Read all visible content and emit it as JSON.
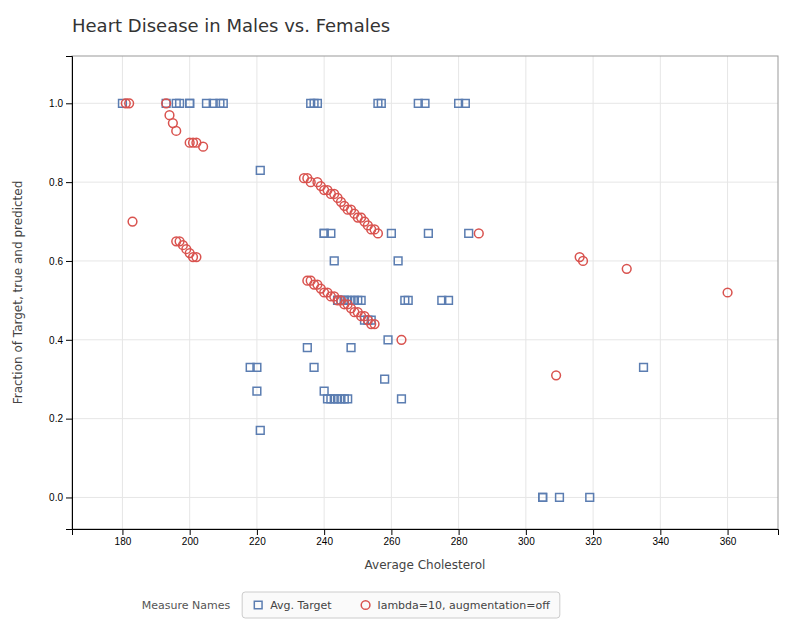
{
  "chart_data": {
    "type": "scatter",
    "title": "Heart Disease in Males vs. Females",
    "xlabel": "Average Cholesterol",
    "ylabel": "Fraction of Target, true and predicted",
    "xlim": [
      165,
      375
    ],
    "ylim": [
      -0.08,
      1.12
    ],
    "xticks": [
      180,
      200,
      220,
      240,
      260,
      280,
      300,
      320,
      340,
      360
    ],
    "yticks": [
      {
        "value": 0.0,
        "label": "0.0"
      },
      {
        "value": 0.2,
        "label": "0.2"
      },
      {
        "value": 0.4,
        "label": "0.4"
      },
      {
        "value": 0.6,
        "label": "0.6"
      },
      {
        "value": 0.8,
        "label": "0.8"
      },
      {
        "value": 1.0,
        "label": "1.0"
      }
    ],
    "grid": true,
    "legend": "bottom",
    "annotations": [
      "Measure Names"
    ],
    "series": [
      {
        "name": "Avg. Target",
        "color": "#5b7db1",
        "marker": "square",
        "x": [
          180,
          193,
          196,
          197,
          200,
          200,
          205,
          207,
          209,
          210,
          221,
          236,
          237,
          238,
          240,
          240,
          242,
          243,
          244,
          244,
          245,
          246,
          246,
          247,
          248,
          249,
          250,
          251,
          252,
          253,
          254,
          256,
          257,
          259,
          260,
          262,
          264,
          265,
          268,
          270,
          271,
          275,
          277,
          280,
          282,
          283,
          305,
          305,
          319,
          335,
          218,
          220,
          220,
          221,
          235,
          237,
          240,
          241,
          242,
          243,
          244,
          245,
          246,
          247,
          248,
          258,
          263,
          310
        ],
        "values": [
          1.0,
          1.0,
          1.0,
          1.0,
          1.0,
          1.0,
          1.0,
          1.0,
          1.0,
          1.0,
          0.83,
          1.0,
          1.0,
          1.0,
          0.67,
          0.67,
          0.67,
          0.6,
          0.5,
          0.5,
          0.5,
          0.5,
          0.5,
          0.5,
          0.5,
          0.5,
          0.5,
          0.5,
          0.45,
          0.45,
          0.45,
          1.0,
          1.0,
          0.4,
          0.67,
          0.6,
          0.5,
          0.5,
          1.0,
          1.0,
          0.67,
          0.5,
          0.5,
          1.0,
          1.0,
          0.67,
          0.0,
          0.0,
          0.0,
          0.33,
          0.33,
          0.33,
          0.27,
          0.17,
          0.38,
          0.33,
          0.27,
          0.25,
          0.25,
          0.25,
          0.25,
          0.25,
          0.25,
          0.25,
          0.38,
          0.3,
          0.25,
          0.0
        ]
      },
      {
        "name": "lambda=10, augmentation=off",
        "color": "#d9534f",
        "marker": "circle",
        "x": [
          181,
          182,
          193,
          194,
          195,
          196,
          200,
          201,
          202,
          204,
          196,
          197,
          198,
          199,
          200,
          201,
          202,
          183,
          234,
          235,
          236,
          238,
          239,
          240,
          241,
          242,
          243,
          244,
          245,
          246,
          247,
          248,
          249,
          250,
          251,
          252,
          253,
          254,
          255,
          256,
          286,
          235,
          236,
          237,
          238,
          239,
          240,
          241,
          242,
          243,
          244,
          245,
          246,
          247,
          248,
          249,
          250,
          251,
          252,
          253,
          254,
          255,
          263,
          309,
          316,
          317,
          330,
          360
        ],
        "values": [
          1.0,
          1.0,
          1.0,
          0.97,
          0.95,
          0.93,
          0.9,
          0.9,
          0.9,
          0.89,
          0.65,
          0.65,
          0.64,
          0.63,
          0.62,
          0.61,
          0.61,
          0.7,
          0.81,
          0.81,
          0.8,
          0.8,
          0.79,
          0.78,
          0.78,
          0.77,
          0.77,
          0.76,
          0.75,
          0.74,
          0.73,
          0.73,
          0.72,
          0.71,
          0.71,
          0.7,
          0.69,
          0.68,
          0.68,
          0.67,
          0.67,
          0.55,
          0.55,
          0.54,
          0.54,
          0.53,
          0.52,
          0.52,
          0.51,
          0.51,
          0.5,
          0.5,
          0.49,
          0.49,
          0.48,
          0.47,
          0.47,
          0.46,
          0.46,
          0.45,
          0.44,
          0.44,
          0.4,
          0.31,
          0.61,
          0.6,
          0.58,
          0.52
        ]
      }
    ]
  }
}
